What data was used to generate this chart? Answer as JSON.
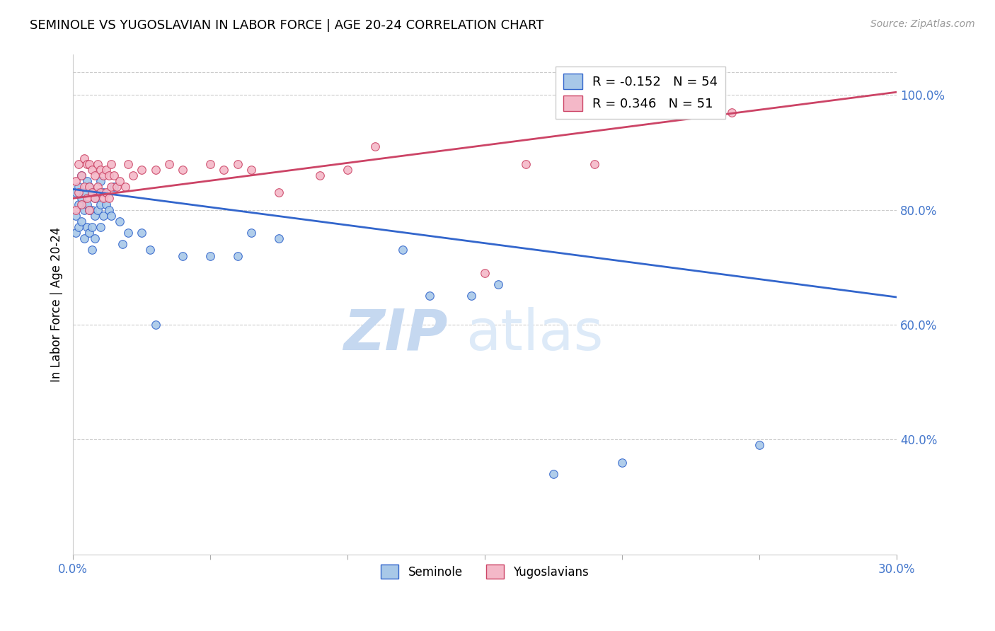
{
  "title": "SEMINOLE VS YUGOSLAVIAN IN LABOR FORCE | AGE 20-24 CORRELATION CHART",
  "source": "Source: ZipAtlas.com",
  "ylabel": "In Labor Force | Age 20-24",
  "xlim": [
    0.0,
    0.3
  ],
  "ylim": [
    0.2,
    1.07
  ],
  "xticks": [
    0.0,
    0.05,
    0.1,
    0.15,
    0.2,
    0.25,
    0.3
  ],
  "yticks_right": [
    0.4,
    0.6,
    0.8,
    1.0
  ],
  "ytick_right_labels": [
    "40.0%",
    "60.0%",
    "80.0%",
    "100.0%"
  ],
  "blue_color": "#a8c8e8",
  "pink_color": "#f4b8c8",
  "blue_line_color": "#3366cc",
  "pink_line_color": "#cc4466",
  "blue_label": "Seminole",
  "pink_label": "Yugoslavians",
  "blue_R": -0.152,
  "blue_N": 54,
  "pink_R": 0.346,
  "pink_N": 51,
  "blue_trend_x0": 0.0,
  "blue_trend_y0": 0.836,
  "blue_trend_x1": 0.3,
  "blue_trend_y1": 0.648,
  "pink_trend_x0": 0.0,
  "pink_trend_y0": 0.82,
  "pink_trend_x1": 0.3,
  "pink_trend_y1": 1.005,
  "grid_color": "#cccccc",
  "background_color": "#ffffff",
  "text_color": "#4477cc",
  "watermark_zip": "ZIP",
  "watermark_atlas": "atlas",
  "blue_scatter_x": [
    0.001,
    0.001,
    0.001,
    0.002,
    0.002,
    0.002,
    0.003,
    0.003,
    0.003,
    0.004,
    0.004,
    0.004,
    0.005,
    0.005,
    0.005,
    0.006,
    0.006,
    0.006,
    0.007,
    0.007,
    0.007,
    0.007,
    0.008,
    0.008,
    0.008,
    0.009,
    0.009,
    0.01,
    0.01,
    0.01,
    0.011,
    0.011,
    0.012,
    0.013,
    0.014,
    0.015,
    0.017,
    0.018,
    0.02,
    0.025,
    0.028,
    0.03,
    0.04,
    0.05,
    0.06,
    0.065,
    0.075,
    0.12,
    0.13,
    0.145,
    0.155,
    0.175,
    0.2,
    0.25
  ],
  "blue_scatter_y": [
    0.83,
    0.79,
    0.76,
    0.84,
    0.81,
    0.77,
    0.86,
    0.82,
    0.78,
    0.83,
    0.8,
    0.75,
    0.85,
    0.81,
    0.77,
    0.84,
    0.8,
    0.76,
    0.83,
    0.8,
    0.77,
    0.73,
    0.82,
    0.79,
    0.75,
    0.83,
    0.8,
    0.85,
    0.81,
    0.77,
    0.83,
    0.79,
    0.81,
    0.8,
    0.79,
    0.84,
    0.78,
    0.74,
    0.76,
    0.76,
    0.73,
    0.6,
    0.72,
    0.72,
    0.72,
    0.76,
    0.75,
    0.73,
    0.65,
    0.65,
    0.67,
    0.34,
    0.36,
    0.39
  ],
  "pink_scatter_x": [
    0.001,
    0.001,
    0.002,
    0.002,
    0.003,
    0.003,
    0.004,
    0.004,
    0.005,
    0.005,
    0.006,
    0.006,
    0.006,
    0.007,
    0.007,
    0.008,
    0.008,
    0.009,
    0.009,
    0.01,
    0.01,
    0.011,
    0.011,
    0.012,
    0.012,
    0.013,
    0.013,
    0.014,
    0.014,
    0.015,
    0.016,
    0.017,
    0.019,
    0.02,
    0.022,
    0.025,
    0.03,
    0.035,
    0.04,
    0.05,
    0.055,
    0.06,
    0.065,
    0.075,
    0.09,
    0.1,
    0.11,
    0.15,
    0.165,
    0.19,
    0.24
  ],
  "pink_scatter_y": [
    0.85,
    0.8,
    0.88,
    0.83,
    0.86,
    0.81,
    0.89,
    0.84,
    0.88,
    0.82,
    0.88,
    0.84,
    0.8,
    0.87,
    0.83,
    0.86,
    0.82,
    0.88,
    0.84,
    0.87,
    0.83,
    0.86,
    0.82,
    0.87,
    0.83,
    0.86,
    0.82,
    0.88,
    0.84,
    0.86,
    0.84,
    0.85,
    0.84,
    0.88,
    0.86,
    0.87,
    0.87,
    0.88,
    0.87,
    0.88,
    0.87,
    0.88,
    0.87,
    0.83,
    0.86,
    0.87,
    0.91,
    0.69,
    0.88,
    0.88,
    0.97
  ]
}
